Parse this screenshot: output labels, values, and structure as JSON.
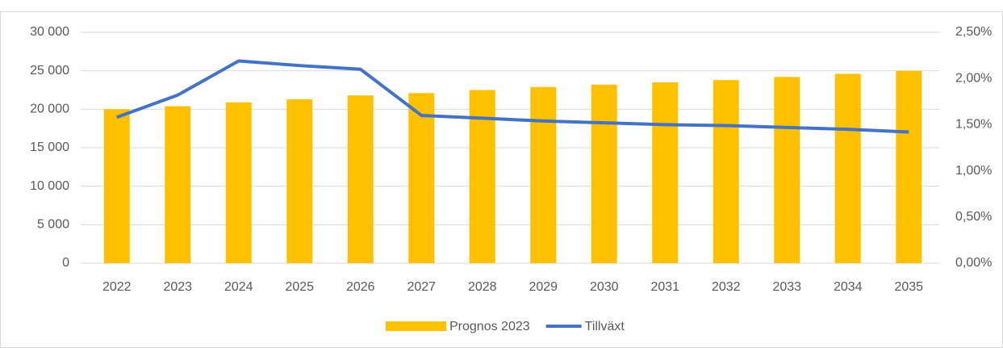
{
  "chart_data": {
    "type": "bar_line",
    "categories": [
      "2022",
      "2023",
      "2024",
      "2025",
      "2026",
      "2027",
      "2028",
      "2029",
      "2030",
      "2031",
      "2032",
      "2033",
      "2034",
      "2035"
    ],
    "series": [
      {
        "name": "Prognos 2023",
        "type": "bar",
        "color": "#ffc000",
        "values": [
          20000,
          20400,
          20900,
          21300,
          21800,
          22100,
          22500,
          22900,
          23200,
          23500,
          23800,
          24200,
          24600,
          25000
        ]
      },
      {
        "name": "Tillväxt",
        "type": "line",
        "axis": "y2",
        "color": "#4472c4",
        "values": [
          1.58,
          1.82,
          2.19,
          2.14,
          2.1,
          1.6,
          1.57,
          1.54,
          1.52,
          1.5,
          1.49,
          1.47,
          1.45,
          1.42
        ]
      }
    ],
    "ylim": [
      0,
      30000
    ],
    "yticks": [
      0,
      {
        "value": 5000,
        "label": "5 000"
      },
      {
        "value": 10000,
        "label": "10 000"
      },
      {
        "value": 15000,
        "label": "15 000"
      },
      {
        "value": 20000,
        "label": "20 000"
      },
      {
        "value": 25000,
        "label": "25 000"
      },
      {
        "value": 30000,
        "label": "30 000"
      }
    ],
    "y2lim": [
      0,
      2.5
    ],
    "y2ticks": [
      {
        "value": 0,
        "label": "0,00%"
      },
      {
        "value": 0.5,
        "label": "0,50%"
      },
      {
        "value": 1,
        "label": "1,00%"
      },
      {
        "value": 1.5,
        "label": "1,50%"
      },
      {
        "value": 2,
        "label": "2,00%"
      },
      {
        "value": 2.5,
        "label": "2,50%"
      }
    ],
    "grid": true,
    "legend": "bottom"
  }
}
